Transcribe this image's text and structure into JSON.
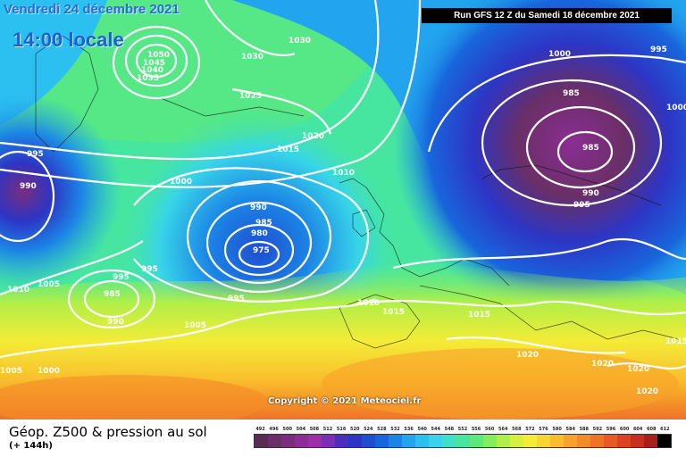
{
  "header": {
    "date": "Vendredi 24 décembre 2021",
    "time": "14:00 locale",
    "run": "Run GFS 12 Z du Samedi 18 décembre 2021"
  },
  "copyright": "Copyright © 2021 Meteociel.fr",
  "legend": {
    "title": "Géop. Z500 & pression au sol",
    "subtitle": "(+ 144h)",
    "scale": [
      {
        "value": "492",
        "color": "#5b2a55"
      },
      {
        "value": "496",
        "color": "#6a2f66"
      },
      {
        "value": "500",
        "color": "#7a2c7e"
      },
      {
        "value": "504",
        "color": "#8b2e93"
      },
      {
        "value": "508",
        "color": "#9a30a8"
      },
      {
        "value": "512",
        "color": "#7a2fb8"
      },
      {
        "value": "516",
        "color": "#4a2fbf"
      },
      {
        "value": "520",
        "color": "#2d35c4"
      },
      {
        "value": "524",
        "color": "#1f4ed0"
      },
      {
        "value": "528",
        "color": "#1866dc"
      },
      {
        "value": "532",
        "color": "#1b84e6"
      },
      {
        "value": "536",
        "color": "#22a4ee"
      },
      {
        "value": "540",
        "color": "#2cc0f0"
      },
      {
        "value": "544",
        "color": "#38d5e8"
      },
      {
        "value": "548",
        "color": "#3fe0c8"
      },
      {
        "value": "552",
        "color": "#46e6a0"
      },
      {
        "value": "556",
        "color": "#5ce87a"
      },
      {
        "value": "560",
        "color": "#86ec5c"
      },
      {
        "value": "564",
        "color": "#b0ef48"
      },
      {
        "value": "568",
        "color": "#d8f03c"
      },
      {
        "value": "572",
        "color": "#f4ec36"
      },
      {
        "value": "576",
        "color": "#f8d630"
      },
      {
        "value": "580",
        "color": "#f9bd2c"
      },
      {
        "value": "584",
        "color": "#f8a22a"
      },
      {
        "value": "588",
        "color": "#f58a28"
      },
      {
        "value": "592",
        "color": "#f07226"
      },
      {
        "value": "596",
        "color": "#e85a24"
      },
      {
        "value": "600",
        "color": "#dc4222"
      },
      {
        "value": "604",
        "color": "#c82e20"
      },
      {
        "value": "608",
        "color": "#a81e1c"
      },
      {
        "value": "612",
        "color": "#000000"
      }
    ]
  },
  "isobar_labels": [
    "1050",
    "1045",
    "1040",
    "1035",
    "1030",
    "1030",
    "1025",
    "1020",
    "1015",
    "1010",
    "1005",
    "1000",
    "995",
    "990",
    "985",
    "980",
    "975",
    "995",
    "1010",
    "1005",
    "995",
    "985",
    "990",
    "1005",
    "1010",
    "1015",
    "1015",
    "1020",
    "1025",
    "995",
    "1000",
    "985",
    "990",
    "995",
    "1005",
    "1000",
    "1000",
    "1010",
    "1015",
    "995",
    "990",
    "995",
    "1000",
    "1010",
    "1015",
    "1020",
    "1020",
    "1020"
  ],
  "map_colors": {
    "sea_green": "#7be08a",
    "cyan": "#3ad0e8",
    "blue": "#1e6fde",
    "deep_blue": "#2038c8",
    "purple": "#5a2a8c",
    "violet": "#8a1fa2",
    "yellow": "#f4e23a",
    "orange": "#f59a2a",
    "lime": "#b8ee4a"
  }
}
